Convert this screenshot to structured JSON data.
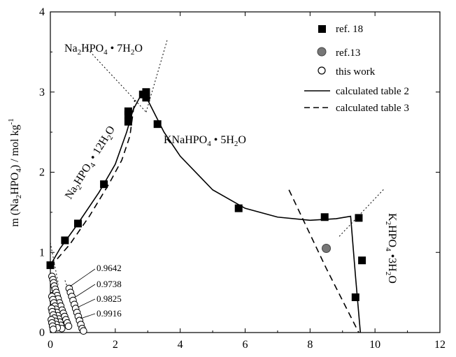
{
  "chart_data": {
    "type": "scatter",
    "xlabel": "",
    "ylabel": "m (Na2HPO4) / mol kg-1",
    "xlim": [
      0,
      12
    ],
    "ylim": [
      0,
      4
    ],
    "xticks": [
      0,
      2,
      4,
      6,
      8,
      10,
      12
    ],
    "yticks": [
      0,
      1,
      2,
      3,
      4
    ],
    "xtick_labels": [
      "0",
      "2",
      "4",
      "6",
      "8",
      "10",
      "12"
    ],
    "ytick_labels": [
      "0",
      "1",
      "2",
      "3",
      "4"
    ],
    "grid": false,
    "legend_position": "top-right",
    "legend": [
      {
        "label": "ref. 18",
        "marker": "filled-square"
      },
      {
        "label": "ref.13",
        "marker": "gray-circle"
      },
      {
        "label": "this work",
        "marker": "open-circle"
      },
      {
        "label": "calculated table 2",
        "marker": "solid-line"
      },
      {
        "label": "calculated table 3",
        "marker": "dashed-line"
      }
    ],
    "series": [
      {
        "name": "ref. 18",
        "marker": "filled-square",
        "points": [
          {
            "x": 0.0,
            "y": 0.84
          },
          {
            "x": 0.45,
            "y": 1.15
          },
          {
            "x": 0.85,
            "y": 1.36
          },
          {
            "x": 1.65,
            "y": 1.85
          },
          {
            "x": 2.4,
            "y": 2.63
          },
          {
            "x": 2.4,
            "y": 2.72
          },
          {
            "x": 2.4,
            "y": 2.76
          },
          {
            "x": 2.85,
            "y": 2.97
          },
          {
            "x": 2.95,
            "y": 3.0
          },
          {
            "x": 2.95,
            "y": 2.93
          },
          {
            "x": 3.3,
            "y": 2.6
          },
          {
            "x": 5.8,
            "y": 1.55
          },
          {
            "x": 8.45,
            "y": 1.44
          },
          {
            "x": 9.5,
            "y": 1.43
          },
          {
            "x": 9.6,
            "y": 0.9
          },
          {
            "x": 9.4,
            "y": 0.44
          }
        ]
      },
      {
        "name": "ref.13",
        "marker": "gray-circle",
        "points": [
          {
            "x": 8.5,
            "y": 1.05
          }
        ]
      },
      {
        "name": "this work",
        "marker": "open-circle",
        "points": [
          {
            "x": 0.05,
            "y": 0.7
          },
          {
            "x": 0.08,
            "y": 0.66
          },
          {
            "x": 0.1,
            "y": 0.62
          },
          {
            "x": 0.12,
            "y": 0.58
          },
          {
            "x": 0.15,
            "y": 0.54
          },
          {
            "x": 0.18,
            "y": 0.5
          },
          {
            "x": 0.21,
            "y": 0.46
          },
          {
            "x": 0.24,
            "y": 0.42
          },
          {
            "x": 0.28,
            "y": 0.37
          },
          {
            "x": 0.32,
            "y": 0.33
          },
          {
            "x": 0.36,
            "y": 0.28
          },
          {
            "x": 0.4,
            "y": 0.24
          },
          {
            "x": 0.44,
            "y": 0.2
          },
          {
            "x": 0.48,
            "y": 0.16
          },
          {
            "x": 0.52,
            "y": 0.12
          },
          {
            "x": 0.56,
            "y": 0.08
          },
          {
            "x": 0.05,
            "y": 0.45
          },
          {
            "x": 0.08,
            "y": 0.41
          },
          {
            "x": 0.11,
            "y": 0.37
          },
          {
            "x": 0.14,
            "y": 0.33
          },
          {
            "x": 0.17,
            "y": 0.29
          },
          {
            "x": 0.2,
            "y": 0.25
          },
          {
            "x": 0.23,
            "y": 0.21
          },
          {
            "x": 0.26,
            "y": 0.17
          },
          {
            "x": 0.29,
            "y": 0.13
          },
          {
            "x": 0.32,
            "y": 0.09
          },
          {
            "x": 0.35,
            "y": 0.05
          },
          {
            "x": 0.04,
            "y": 0.3
          },
          {
            "x": 0.06,
            "y": 0.26
          },
          {
            "x": 0.09,
            "y": 0.22
          },
          {
            "x": 0.12,
            "y": 0.18
          },
          {
            "x": 0.15,
            "y": 0.14
          },
          {
            "x": 0.18,
            "y": 0.1
          },
          {
            "x": 0.21,
            "y": 0.06
          },
          {
            "x": 0.03,
            "y": 0.16
          },
          {
            "x": 0.05,
            "y": 0.12
          },
          {
            "x": 0.07,
            "y": 0.08
          },
          {
            "x": 0.09,
            "y": 0.04
          },
          {
            "x": 0.58,
            "y": 0.55
          },
          {
            "x": 0.62,
            "y": 0.5
          },
          {
            "x": 0.66,
            "y": 0.45
          },
          {
            "x": 0.7,
            "y": 0.4
          },
          {
            "x": 0.74,
            "y": 0.35
          },
          {
            "x": 0.78,
            "y": 0.3
          },
          {
            "x": 0.82,
            "y": 0.25
          },
          {
            "x": 0.86,
            "y": 0.2
          },
          {
            "x": 0.9,
            "y": 0.15
          },
          {
            "x": 0.94,
            "y": 0.1
          },
          {
            "x": 0.98,
            "y": 0.05
          },
          {
            "x": 1.02,
            "y": 0.02
          }
        ]
      }
    ],
    "lines": [
      {
        "name": "calculated table 2",
        "style": "solid",
        "points": [
          {
            "x": 0.0,
            "y": 0.84
          },
          {
            "x": 0.3,
            "y": 1.05
          },
          {
            "x": 0.8,
            "y": 1.33
          },
          {
            "x": 1.5,
            "y": 1.75
          },
          {
            "x": 2.0,
            "y": 2.1
          },
          {
            "x": 2.35,
            "y": 2.5
          },
          {
            "x": 2.55,
            "y": 2.78
          },
          {
            "x": 2.75,
            "y": 2.93
          },
          {
            "x": 2.9,
            "y": 2.98
          },
          {
            "x": 3.1,
            "y": 2.82
          },
          {
            "x": 3.5,
            "y": 2.5
          },
          {
            "x": 4.0,
            "y": 2.2
          },
          {
            "x": 5.0,
            "y": 1.78
          },
          {
            "x": 6.0,
            "y": 1.55
          },
          {
            "x": 7.0,
            "y": 1.44
          },
          {
            "x": 8.0,
            "y": 1.4
          },
          {
            "x": 8.8,
            "y": 1.42
          },
          {
            "x": 9.25,
            "y": 1.45
          },
          {
            "x": 9.4,
            "y": 0.7
          },
          {
            "x": 9.55,
            "y": 0.0
          }
        ]
      },
      {
        "name": "calculated table 3",
        "style": "dashed",
        "points": [
          {
            "x": 0.0,
            "y": 0.82
          },
          {
            "x": 0.6,
            "y": 1.1
          },
          {
            "x": 1.2,
            "y": 1.45
          },
          {
            "x": 1.8,
            "y": 1.85
          },
          {
            "x": 2.2,
            "y": 2.15
          },
          {
            "x": 2.45,
            "y": 2.45
          },
          {
            "x": 2.6,
            "y": 2.9
          }
        ]
      },
      {
        "name": "calculated table 3 (K2HPO4 branch)",
        "style": "dashed",
        "points": [
          {
            "x": 7.35,
            "y": 1.78
          },
          {
            "x": 8.5,
            "y": 0.8
          },
          {
            "x": 9.5,
            "y": 0.0
          }
        ]
      },
      {
        "name": "composition tie-lines",
        "style": "dotted",
        "segments": [
          [
            {
              "x": 1.0,
              "y": 3.6
            },
            {
              "x": 2.95,
              "y": 2.75
            }
          ],
          [
            {
              "x": 2.95,
              "y": 2.75
            },
            {
              "x": 3.6,
              "y": 3.65
            }
          ],
          [
            {
              "x": 8.9,
              "y": 1.2
            },
            {
              "x": 10.3,
              "y": 1.8
            }
          ],
          [
            {
              "x": 0.0,
              "y": 1.12
            },
            {
              "x": 0.25,
              "y": 0.6
            }
          ],
          [
            {
              "x": 0.45,
              "y": 0.65
            },
            {
              "x": 0.9,
              "y": 0.15
            }
          ]
        ]
      }
    ],
    "annotations": [
      {
        "id": "na2hpo4-7h2o",
        "label": "Na2HPO4 • 7H2O"
      },
      {
        "id": "na2hpo4-12h2o",
        "label": "Na2HPO4 • 12H2O"
      },
      {
        "id": "knahpo4-5h2o",
        "label": "KNaHPO4 • 5H2O"
      },
      {
        "id": "k2hpo4-3h2o",
        "label": "K2HPO4 •3H2O"
      }
    ],
    "isotherm_labels": [
      "0.9642",
      "0.9738",
      "0.9825",
      "0.9916"
    ]
  }
}
